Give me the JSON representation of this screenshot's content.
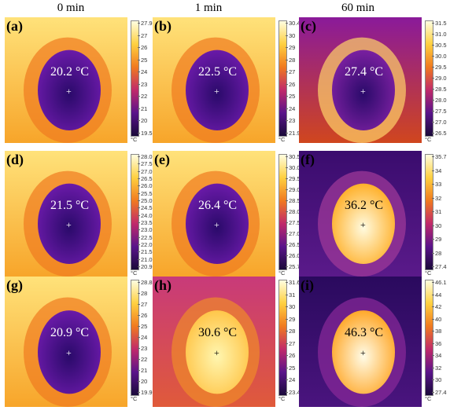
{
  "columns": [
    "0 min",
    "1 min",
    "60 min"
  ],
  "unit_label": "°C",
  "panels": [
    {
      "label": "(a)",
      "temp": "20.2 °C",
      "scheme": "cold",
      "ticks": [
        "27.9",
        "27",
        "26",
        "25",
        "24",
        "23",
        "22",
        "21",
        "20",
        "19.5"
      ]
    },
    {
      "label": "(b)",
      "temp": "22.5 °C",
      "scheme": "cold",
      "ticks": [
        "30.4",
        "30",
        "29",
        "28",
        "27",
        "26",
        "25",
        "24",
        "23",
        "21.9"
      ]
    },
    {
      "label": "(c)",
      "temp": "27.4 °C",
      "scheme": "cold2",
      "ticks": [
        "31.5",
        "31.0",
        "30.5",
        "30.0",
        "29.5",
        "29.0",
        "28.5",
        "28.0",
        "27.5",
        "27.0",
        "26.5"
      ]
    },
    {
      "label": "(d)",
      "temp": "21.5 °C",
      "scheme": "cold",
      "ticks": [
        "28.0",
        "27.5",
        "27.0",
        "26.5",
        "26.0",
        "25.5",
        "25.0",
        "24.5",
        "24.0",
        "23.5",
        "23.0",
        "22.5",
        "22.0",
        "21.5",
        "21.0",
        "20.9"
      ]
    },
    {
      "label": "(e)",
      "temp": "26.4 °C",
      "scheme": "cold",
      "ticks": [
        "30.5",
        "30.0",
        "29.5",
        "29.0",
        "28.5",
        "28.0",
        "27.5",
        "27.0",
        "26.5",
        "26.0",
        "25.7"
      ]
    },
    {
      "label": "(f)",
      "temp": "36.2 °C",
      "scheme": "hot",
      "ticks": [
        "35.7",
        "34",
        "33",
        "32",
        "31",
        "30",
        "29",
        "28",
        "27.4"
      ]
    },
    {
      "label": "(g)",
      "temp": "20.9 °C",
      "scheme": "cold",
      "ticks": [
        "28.8",
        "28",
        "27",
        "26",
        "25",
        "24",
        "23",
        "22",
        "21",
        "20",
        "19.9"
      ]
    },
    {
      "label": "(h)",
      "temp": "30.6 °C",
      "scheme": "warm",
      "ticks": [
        "31.6",
        "31",
        "30",
        "29",
        "28",
        "27",
        "26",
        "25",
        "24",
        "23.4"
      ]
    },
    {
      "label": "(i)",
      "temp": "46.3 °C",
      "scheme": "hot2",
      "ticks": [
        "46.1",
        "44",
        "42",
        "40",
        "38",
        "36",
        "34",
        "32",
        "30",
        "27.4"
      ]
    }
  ]
}
